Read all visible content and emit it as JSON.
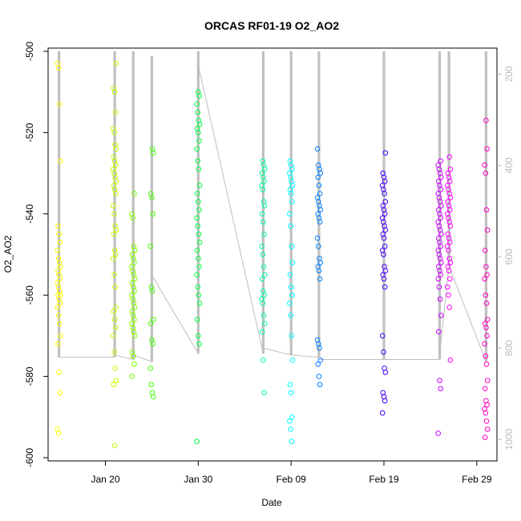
{
  "chart_data": {
    "type": "scatter",
    "title": "ORCAS RF01-19 O2_AO2",
    "xlabel": "Date",
    "ylabel": "O2_AO2",
    "x_range": [
      "2016-01-14",
      "2016-03-02"
    ],
    "ylim": [
      -600,
      -500
    ],
    "y2lim": [
      1040,
      150
    ],
    "y_ticks": [
      -600,
      -580,
      -560,
      -540,
      -520,
      -500
    ],
    "y_tick_labels": [
      "-600",
      "-580",
      "-560",
      "-540",
      "-520",
      "-500"
    ],
    "x_ticks": [
      "2016-01-20",
      "2016-01-30",
      "2016-02-09",
      "2016-02-19",
      "2016-02-29"
    ],
    "x_tick_labels": [
      "Jan 20",
      "Jan 30",
      "Feb 09",
      "Feb 19",
      "Feb 29"
    ],
    "y2_ticks": [
      200,
      400,
      600,
      800,
      1000
    ],
    "y2_tick_labels": [
      "200",
      "400",
      "600",
      "800",
      "1000"
    ],
    "pressure_color": "#bebebe",
    "axis_color": "#000000",
    "secondary_axis_color": "#bbbbbb",
    "series": [
      {
        "date": "2016-01-15",
        "color": "#FFFF00",
        "values": [
          -503,
          -504,
          -513,
          -527,
          -543,
          -545,
          -547,
          -549,
          -551,
          -552,
          -553,
          -554,
          -555,
          -556,
          -557,
          -558,
          -559,
          -560,
          -560,
          -561,
          -562,
          -563,
          -565,
          -567,
          -570,
          -572,
          -579,
          -584,
          -593,
          -594
        ]
      },
      {
        "date": "2016-01-21",
        "color": "#BFFF00",
        "values": [
          -503,
          -509,
          -510,
          -515,
          -519,
          -520,
          -523,
          -524,
          -526,
          -527,
          -528,
          -529,
          -530,
          -531,
          -532,
          -533,
          -534,
          -535,
          -538,
          -540,
          -543,
          -544,
          -545,
          -549,
          -550,
          -551,
          -555,
          -558,
          -563,
          -564,
          -566,
          -568,
          -570,
          -574,
          -578,
          -581,
          -582,
          -597
        ]
      },
      {
        "date": "2016-01-23",
        "color": "#7FFF00",
        "values": [
          -535,
          -540,
          -541,
          -548,
          -549,
          -550,
          -551,
          -552,
          -553,
          -554,
          -555,
          -556,
          -557,
          -558,
          -559,
          -560,
          -561,
          -562,
          -563,
          -564,
          -565,
          -566,
          -567,
          -568,
          -569,
          -570,
          -574,
          -575,
          -577,
          -580
        ]
      },
      {
        "date": "2016-01-25",
        "color": "#40FF00",
        "values": [
          -524,
          -525,
          -535,
          -536,
          -540,
          -548,
          -558,
          -559,
          -566,
          -567,
          -571,
          -572,
          -578,
          -582,
          -584,
          -585
        ]
      },
      {
        "date": "2016-01-30",
        "color": "#00FF40",
        "values": [
          -510,
          -511,
          -513,
          -515,
          -517,
          -518,
          -519,
          -520,
          -522,
          -524,
          -527,
          -529,
          -533,
          -535,
          -537,
          -539,
          -541,
          -543,
          -545,
          -547,
          -549,
          -551,
          -553,
          -555,
          -558,
          -560,
          -562,
          -566,
          -570,
          -572,
          -596
        ]
      },
      {
        "date": "2016-02-06",
        "color": "#00FF99",
        "values": [
          -527,
          -528,
          -529,
          -530,
          -531,
          -532,
          -533,
          -534,
          -537,
          -538,
          -540,
          -542,
          -545,
          -548,
          -550,
          -553,
          -555,
          -556,
          -559,
          -560,
          -561,
          -562,
          -565,
          -567,
          -569,
          -576,
          -584
        ]
      },
      {
        "date": "2016-02-09",
        "color": "#00FFFF",
        "values": [
          -527,
          -528,
          -529,
          -530,
          -531,
          -532,
          -533,
          -534,
          -535,
          -537,
          -540,
          -543,
          -548,
          -552,
          -555,
          -558,
          -560,
          -562,
          -565,
          -570,
          -576,
          -582,
          -584,
          -590,
          -591,
          -593,
          -596
        ]
      },
      {
        "date": "2016-02-12",
        "color": "#0080FF",
        "values": [
          -524,
          -528,
          -529,
          -530,
          -531,
          -533,
          -535,
          -536,
          -537,
          -538,
          -539,
          -540,
          -541,
          -542,
          -546,
          -548,
          -551,
          -552,
          -553,
          -554,
          -556,
          -571,
          -572,
          -573,
          -576,
          -577,
          -580,
          -582
        ]
      },
      {
        "date": "2016-02-19",
        "color": "#4000FF",
        "values": [
          -525,
          -530,
          -531,
          -532,
          -533,
          -534,
          -535,
          -537,
          -538,
          -539,
          -540,
          -541,
          -542,
          -543,
          -544,
          -545,
          -546,
          -548,
          -549,
          -550,
          -553,
          -554,
          -555,
          -556,
          -558,
          -570,
          -574,
          -578,
          -579,
          -584,
          -585,
          -586,
          -589
        ]
      },
      {
        "date": "2016-02-25",
        "color": "#CC00FF",
        "values": [
          -527,
          -528,
          -529,
          -530,
          -531,
          -532,
          -533,
          -534,
          -535,
          -536,
          -537,
          -538,
          -539,
          -540,
          -541,
          -542,
          -543,
          -544,
          -545,
          -546,
          -547,
          -548,
          -549,
          -550,
          -551,
          -552,
          -553,
          -554,
          -555,
          -556,
          -558,
          -561,
          -565,
          -569,
          -581,
          -583,
          -594
        ]
      },
      {
        "date": "2016-02-26",
        "color": "#FF00FF",
        "values": [
          -526,
          -529,
          -530,
          -531,
          -532,
          -533,
          -534,
          -535,
          -536,
          -537,
          -538,
          -539,
          -540,
          -541,
          -542,
          -543,
          -545,
          -546,
          -547,
          -548,
          -549,
          -551,
          -552,
          -553,
          -554,
          -556,
          -558,
          -560,
          -563,
          -576
        ]
      },
      {
        "date": "2016-03-01",
        "color": "#FF00BF",
        "values": [
          -517,
          -524,
          -528,
          -530,
          -539,
          -544,
          -549,
          -553,
          -555,
          -556,
          -560,
          -562,
          -566,
          -567,
          -568,
          -570,
          -572,
          -575,
          -577,
          -581,
          -583,
          -586,
          -587,
          -588,
          -589,
          -591,
          -593,
          -595
        ]
      }
    ],
    "pressure_trace": [
      {
        "date": "2016-01-15",
        "top": 150,
        "bottom": 820,
        "tail": 820
      },
      {
        "date": "2016-01-21",
        "top": 150,
        "bottom": 820,
        "tail": 815
      },
      {
        "date": "2016-01-23",
        "top": 150,
        "bottom": 825,
        "tail": 815
      },
      {
        "date": "2016-01-25",
        "top": 160,
        "bottom": 830,
        "tail": 640
      },
      {
        "date": "2016-01-30",
        "top": 150,
        "bottom": 812,
        "tail": 180
      },
      {
        "date": "2016-02-06",
        "top": 150,
        "bottom": 812,
        "tail": 800
      },
      {
        "date": "2016-02-09",
        "top": 150,
        "bottom": 815,
        "tail": 815
      },
      {
        "date": "2016-02-12",
        "top": 150,
        "bottom": 820,
        "tail": 825
      },
      {
        "date": "2016-02-19",
        "top": 150,
        "bottom": 825,
        "tail": 825
      },
      {
        "date": "2016-02-25",
        "top": 150,
        "bottom": 825,
        "tail": 815
      },
      {
        "date": "2016-02-26",
        "top": 150,
        "bottom": 620,
        "tail": 620
      },
      {
        "date": "2016-03-01",
        "top": 150,
        "bottom": 830,
        "tail": 830
      }
    ]
  }
}
